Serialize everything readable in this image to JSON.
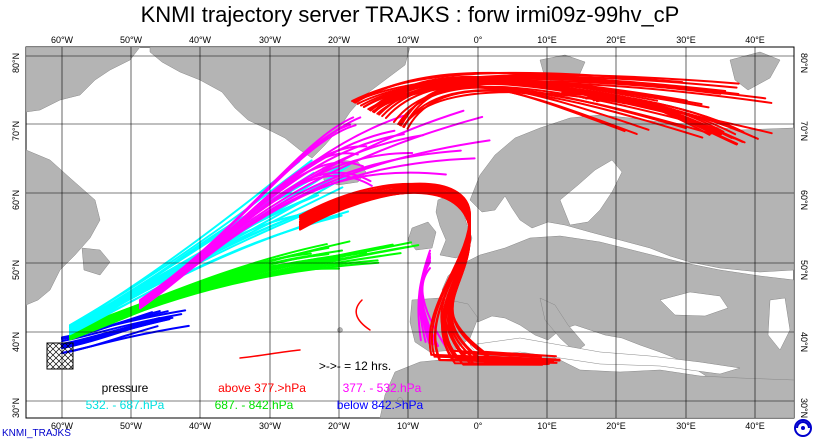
{
  "title": "KNMI trajectory server TRAJKS : forw irmi09z-99hv_cP",
  "credit": "KNMI_TRAJKS",
  "lon_labels": [
    "60°W",
    "50°W",
    "40°W",
    "30°W",
    "20°W",
    "10°W",
    "0°",
    "10°E",
    "20°E",
    "30°E",
    "40°E"
  ],
  "lat_labels": [
    "80°N",
    "70°N",
    "60°N",
    "50°N",
    "40°N",
    "30°N"
  ],
  "legend": {
    "time_mark": ">->- = 12 hrs.",
    "heading": "pressure",
    "classes": [
      {
        "label": "above 377.>hPa",
        "color": "#ff0000"
      },
      {
        "label": "377. -   532.hPa",
        "color": "#ff00ff"
      },
      {
        "label": "532. -   687.hPa",
        "color": "#00ffff"
      },
      {
        "label": "687. -   842.hPa",
        "color": "#00ff00"
      },
      {
        "label": "below 842.>hPa",
        "color": "#0000ff"
      }
    ]
  },
  "colors": {
    "land": "#b4b4b4",
    "sea": "#ffffff",
    "grid": "#000000"
  },
  "icons": {
    "source_marker": "hatched-box-icon",
    "knmi_logo": "knmi-logo-icon"
  }
}
